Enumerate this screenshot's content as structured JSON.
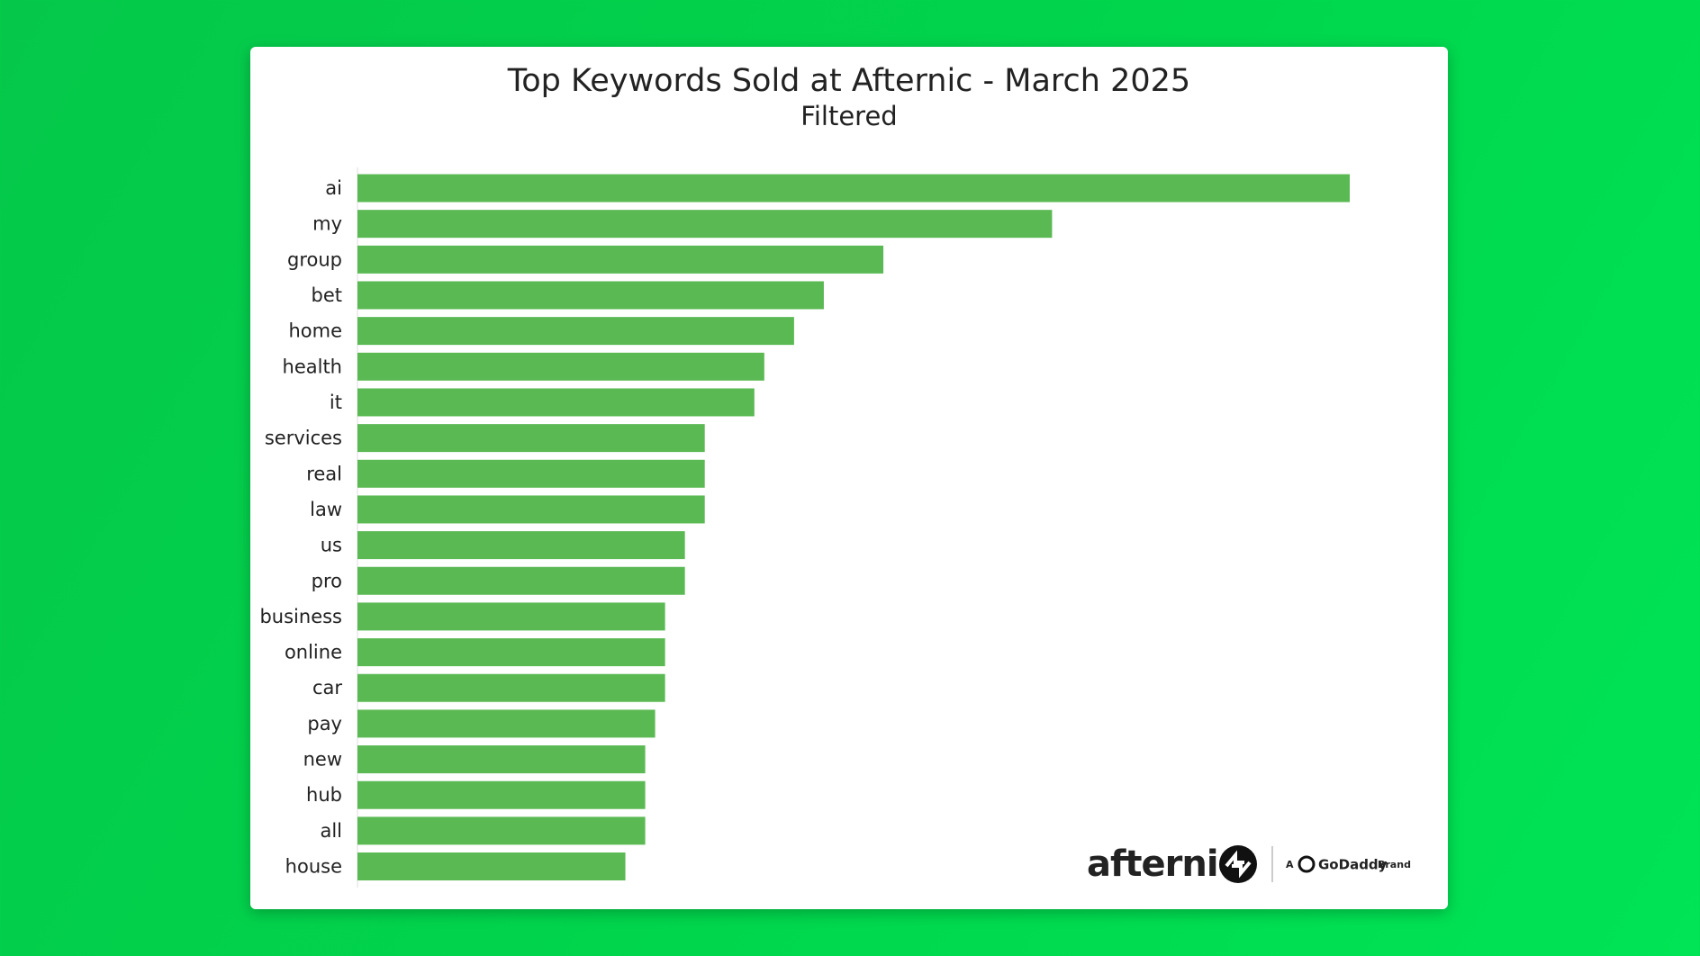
{
  "chart_data": {
    "type": "barh",
    "title": "Top Keywords Sold at Afternic - March 2025",
    "subtitle": "Filtered",
    "categories": [
      "ai",
      "my",
      "group",
      "bet",
      "home",
      "health",
      "it",
      "services",
      "real",
      "law",
      "us",
      "pro",
      "business",
      "online",
      "car",
      "pay",
      "new",
      "hub",
      "all",
      "house"
    ],
    "values": [
      100,
      70,
      53,
      47,
      44,
      41,
      40,
      35,
      35,
      35,
      33,
      33,
      31,
      31,
      31,
      30,
      29,
      29,
      29,
      27
    ],
    "color": "#5ab953",
    "xlim": [
      0,
      100
    ],
    "grid": false
  },
  "logo": {
    "name": "afternic",
    "tagline_a": "A",
    "tagline_brand": "GoDaddy",
    "tagline_end": "Brand"
  }
}
